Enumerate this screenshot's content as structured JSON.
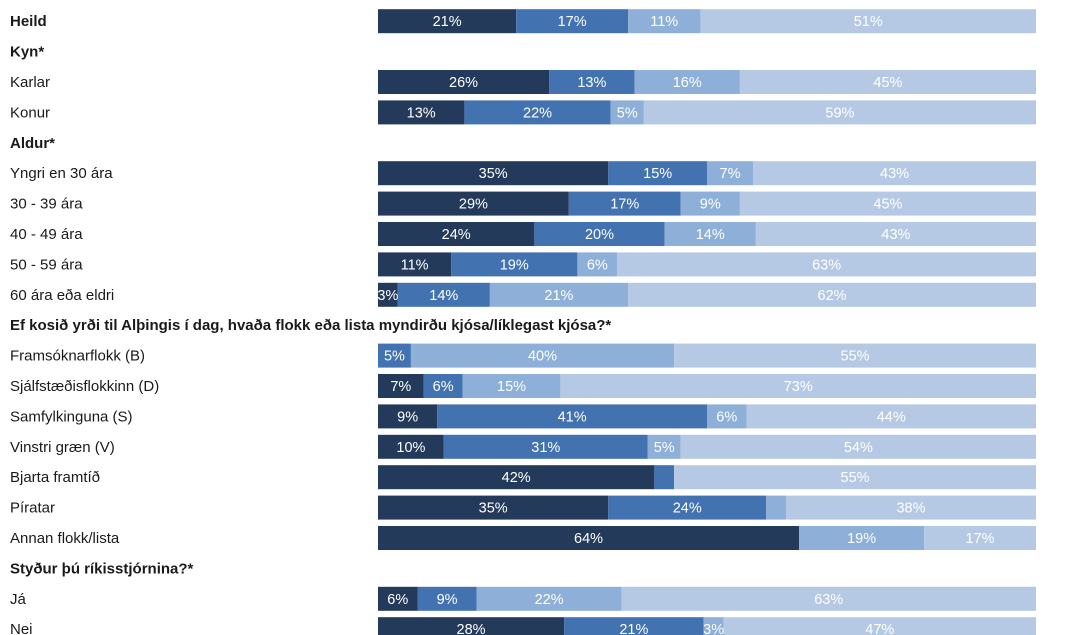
{
  "chart_data": {
    "type": "bar",
    "stacked": true,
    "orientation": "horizontal",
    "value_format": "percent",
    "xlim": [
      0,
      100
    ],
    "colors": [
      "#243a5a",
      "#4272b0",
      "#8dafd8",
      "#b6c9e4"
    ],
    "rows": [
      {
        "label": "Heild",
        "header": true,
        "values": [
          21,
          17,
          11,
          51
        ],
        "labels": [
          "21%",
          "17%",
          "11%",
          "51%"
        ]
      },
      {
        "label": "Kyn*",
        "header": true
      },
      {
        "label": "Karlar",
        "values": [
          26,
          13,
          16,
          45
        ],
        "labels": [
          "26%",
          "13%",
          "16%",
          "45%"
        ]
      },
      {
        "label": "Konur",
        "values": [
          13,
          22,
          5,
          59
        ],
        "labels": [
          "13%",
          "22%",
          "5%",
          "59%"
        ]
      },
      {
        "label": "Aldur*",
        "header": true
      },
      {
        "label": "Yngri en 30 ára",
        "values": [
          35,
          15,
          7,
          43
        ],
        "labels": [
          "35%",
          "15%",
          "7%",
          "43%"
        ]
      },
      {
        "label": "30 - 39 ára",
        "values": [
          29,
          17,
          9,
          45
        ],
        "labels": [
          "29%",
          "17%",
          "9%",
          "45%"
        ]
      },
      {
        "label": "40 - 49 ára",
        "values": [
          24,
          20,
          14,
          43
        ],
        "labels": [
          "24%",
          "20%",
          "14%",
          "43%"
        ]
      },
      {
        "label": "50 - 59 ára",
        "values": [
          11,
          19,
          6,
          63
        ],
        "labels": [
          "11%",
          "19%",
          "6%",
          "63%"
        ]
      },
      {
        "label": "60 ára eða eldri",
        "values": [
          3,
          14,
          21,
          62
        ],
        "labels": [
          "3%",
          "14%",
          "21%",
          "62%"
        ]
      },
      {
        "label": "Ef kosið yrði til Alþingis í dag, hvaða flokk eða lista myndirðu kjósa/líklegast kjósa?*",
        "header": true
      },
      {
        "label": "Framsóknarflokk (B)",
        "values": [
          0,
          5,
          40,
          55
        ],
        "labels": [
          "",
          "5%",
          "40%",
          "55%"
        ]
      },
      {
        "label": "Sjálfstæðisflokkinn (D)",
        "values": [
          7,
          6,
          15,
          73
        ],
        "labels": [
          "7%",
          "6%",
          "15%",
          "73%"
        ]
      },
      {
        "label": "Samfylkinguna (S)",
        "values": [
          9,
          41,
          6,
          44
        ],
        "labels": [
          "9%",
          "41%",
          "6%",
          "44%"
        ]
      },
      {
        "label": "Vinstri græn (V)",
        "values": [
          10,
          31,
          5,
          54
        ],
        "labels": [
          "10%",
          "31%",
          "5%",
          "54%"
        ]
      },
      {
        "label": "Bjarta framtíð",
        "values": [
          42,
          3,
          0,
          55
        ],
        "labels": [
          "42%",
          "",
          "",
          "55%"
        ]
      },
      {
        "label": "Píratar",
        "values": [
          35,
          24,
          3,
          38
        ],
        "labels": [
          "35%",
          "24%",
          "",
          "38%"
        ]
      },
      {
        "label": "Annan flokk/lista",
        "values": [
          64,
          0,
          19,
          17
        ],
        "labels": [
          "64%",
          "",
          "19%",
          "17%"
        ]
      },
      {
        "label": "Styður þú ríkisstjórnina?*",
        "header": true
      },
      {
        "label": "Já",
        "values": [
          6,
          9,
          22,
          63
        ],
        "labels": [
          "6%",
          "9%",
          "22%",
          "63%"
        ]
      },
      {
        "label": "Nei",
        "values": [
          28,
          21,
          3,
          47
        ],
        "labels": [
          "28%",
          "21%",
          "3%",
          "47%"
        ]
      }
    ]
  }
}
